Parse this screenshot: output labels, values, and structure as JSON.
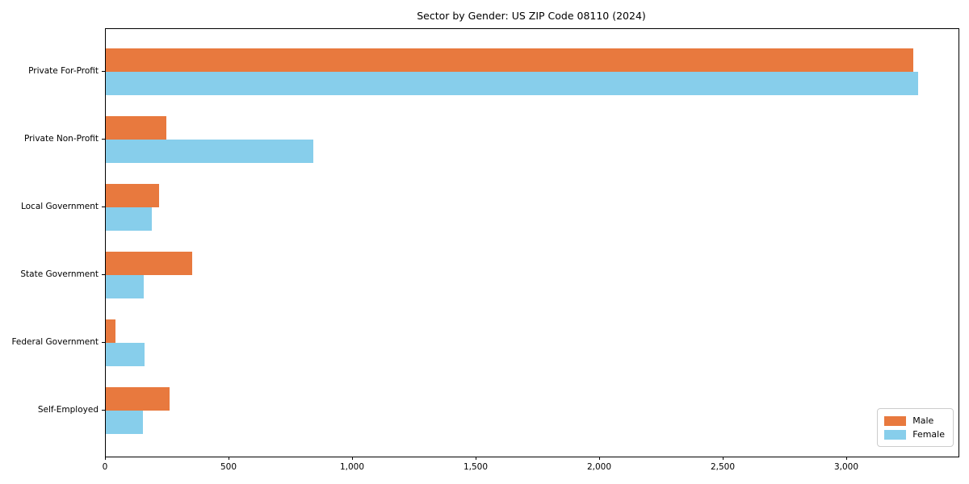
{
  "title": "Sector by Gender: US ZIP Code 08110 (2024)",
  "legend": {
    "entries": [
      {
        "label": "Male",
        "color": "#e8793e"
      },
      {
        "label": "Female",
        "color": "#87ceeb"
      }
    ],
    "position": "lower right"
  },
  "chart_data": {
    "type": "bar",
    "orientation": "horizontal",
    "title": "Sector by Gender: US ZIP Code 08110 (2024)",
    "categories": [
      "Private For-Profit",
      "Private Non-Profit",
      "Local Government",
      "State Government",
      "Federal Government",
      "Self-Employed"
    ],
    "series": [
      {
        "name": "Male",
        "color": "#e8793e",
        "values": [
          3268,
          246,
          216,
          348,
          40,
          258
        ]
      },
      {
        "name": "Female",
        "color": "#87ceeb",
        "values": [
          3288,
          838,
          186,
          154,
          157,
          150
        ]
      }
    ],
    "xlabel": "",
    "ylabel": "",
    "xlim": [
      0,
      3450
    ],
    "xticks": [
      0,
      500,
      1000,
      1500,
      2000,
      2500,
      3000
    ],
    "xtick_labels": [
      "0",
      "500",
      "1,000",
      "1,500",
      "2,000",
      "2,500",
      "3,000"
    ],
    "grid": false,
    "legend_position": "lower right"
  }
}
